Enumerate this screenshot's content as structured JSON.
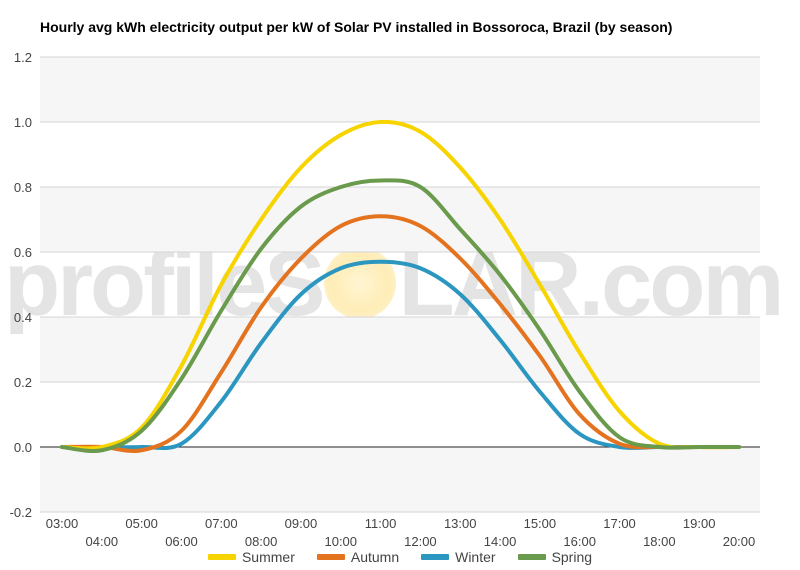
{
  "chart_data": {
    "type": "line",
    "title": "Hourly avg kWh electricity output per kW of Solar PV installed in Bossoroca, Brazil (by season)",
    "xlabel": "",
    "ylabel": "",
    "x": [
      "03:00",
      "04:00",
      "05:00",
      "06:00",
      "07:00",
      "08:00",
      "09:00",
      "10:00",
      "11:00",
      "12:00",
      "13:00",
      "14:00",
      "15:00",
      "16:00",
      "17:00",
      "18:00",
      "19:00",
      "20:00"
    ],
    "ylim": [
      -0.2,
      1.2
    ],
    "yticks": [
      -0.2,
      0.0,
      0.2,
      0.4,
      0.6,
      0.8,
      1.0,
      1.2
    ],
    "grid": true,
    "legend_position": "bottom",
    "series": [
      {
        "name": "Summer",
        "color": "#f7d400",
        "values": [
          0.0,
          0.0,
          0.06,
          0.25,
          0.5,
          0.7,
          0.86,
          0.96,
          1.0,
          0.97,
          0.86,
          0.7,
          0.5,
          0.29,
          0.11,
          0.01,
          0.0,
          0.0
        ]
      },
      {
        "name": "Autumn",
        "color": "#e4731f",
        "values": [
          0.0,
          0.0,
          -0.01,
          0.05,
          0.23,
          0.43,
          0.58,
          0.68,
          0.71,
          0.68,
          0.58,
          0.44,
          0.28,
          0.1,
          0.01,
          0.0,
          0.0,
          0.0
        ]
      },
      {
        "name": "Winter",
        "color": "#2b96c0",
        "values": [
          0.0,
          0.0,
          0.0,
          0.01,
          0.14,
          0.32,
          0.47,
          0.55,
          0.57,
          0.55,
          0.47,
          0.33,
          0.17,
          0.04,
          0.0,
          0.0,
          0.0,
          0.0
        ]
      },
      {
        "name": "Spring",
        "color": "#6a9a4c",
        "values": [
          0.0,
          -0.01,
          0.05,
          0.21,
          0.42,
          0.61,
          0.74,
          0.8,
          0.82,
          0.8,
          0.67,
          0.53,
          0.36,
          0.17,
          0.03,
          0.0,
          0.0,
          0.0
        ]
      }
    ]
  },
  "watermark": {
    "left": "profileS",
    "right": "LAR.com"
  }
}
